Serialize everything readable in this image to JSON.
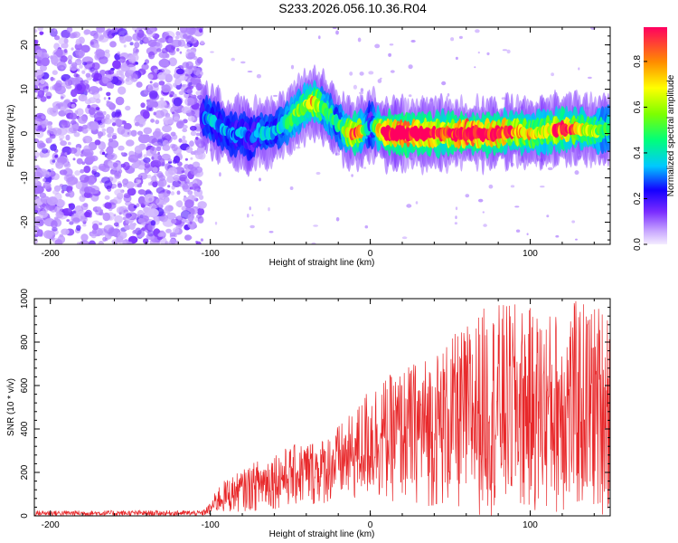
{
  "figure": {
    "title": "S233.2026.056.10.36.R04"
  },
  "chart_data": [
    {
      "type": "heatmap",
      "name": "spectrogram",
      "xlabel": "Height of straight line (km)",
      "ylabel": "Frequency (Hz)",
      "xlim": [
        -210,
        150
      ],
      "ylim": [
        -25,
        24
      ],
      "x_ticks": [
        -200,
        -100,
        0,
        100
      ],
      "x_tick_labels": [
        "-200",
        "-100",
        "0",
        "100"
      ],
      "y_ticks": [
        -20,
        -10,
        0,
        10,
        20
      ],
      "y_tick_labels": [
        "-20",
        "-10",
        "0",
        "10",
        "20"
      ],
      "noise_region": {
        "x_from": -210,
        "x_to": -105,
        "amplitude": 0.1
      },
      "ridge": {
        "x": [
          -105,
          -100,
          -95,
          -90,
          -85,
          -80,
          -75,
          -70,
          -65,
          -60,
          -55,
          -50,
          -45,
          -40,
          -35,
          -30,
          -25,
          -20,
          -15,
          -10,
          -5,
          0,
          5,
          10,
          20,
          30,
          40,
          50,
          60,
          70,
          80,
          90,
          100,
          110,
          120,
          130,
          140,
          150
        ],
        "freq": [
          4,
          3,
          2,
          0.5,
          -0.5,
          0.5,
          -1.5,
          0.5,
          0,
          0.5,
          2,
          3,
          5,
          6.5,
          7,
          6,
          4,
          2,
          0.5,
          0,
          0.5,
          2,
          1,
          0,
          0,
          0,
          0,
          0,
          0,
          0,
          0,
          0.5,
          0,
          0.5,
          1,
          1,
          0.5,
          1
        ],
        "amplitude": [
          0.2,
          0.35,
          0.25,
          0.3,
          0.25,
          0.3,
          0.2,
          0.3,
          0.35,
          0.3,
          0.35,
          0.45,
          0.5,
          0.55,
          0.7,
          0.5,
          0.45,
          0.35,
          0.6,
          0.8,
          0.6,
          0.2,
          0.6,
          0.9,
          0.95,
          0.95,
          0.8,
          0.8,
          0.95,
          0.9,
          0.9,
          0.7,
          0.65,
          0.6,
          0.85,
          0.65,
          0.55,
          0.4
        ]
      }
    },
    {
      "type": "colorbar",
      "name": "colorbar",
      "label": "Normalized spectral amplitude",
      "range": [
        0,
        0.95
      ],
      "ticks": [
        0.0,
        0.2,
        0.4,
        0.6,
        0.8
      ],
      "tick_labels": [
        "0.0",
        "0.2",
        "0.4",
        "0.6",
        "0.8"
      ]
    },
    {
      "type": "line",
      "name": "snr",
      "xlabel": "Height of straight line (km)",
      "ylabel": "SNR (10 * v/v)",
      "xlim": [
        -210,
        150
      ],
      "ylim": [
        0,
        1000
      ],
      "x_ticks": [
        -200,
        -100,
        0,
        100
      ],
      "x_tick_labels": [
        "-200",
        "-100",
        "0",
        "100"
      ],
      "y_ticks": [
        0,
        200,
        400,
        600,
        800,
        1000
      ],
      "y_tick_labels": [
        "0",
        "200",
        "400",
        "600",
        "800",
        "1000"
      ],
      "color": "#e8282a",
      "envelope": {
        "x": [
          -210,
          -105,
          -100,
          -95,
          -90,
          -80,
          -70,
          -60,
          -50,
          -40,
          -30,
          -20,
          -10,
          0,
          10,
          20,
          30,
          40,
          50,
          60,
          70,
          80,
          90,
          100,
          110,
          120,
          130,
          140,
          150
        ],
        "max": [
          25,
          25,
          60,
          140,
          170,
          210,
          260,
          300,
          320,
          350,
          360,
          420,
          480,
          620,
          640,
          680,
          720,
          760,
          820,
          880,
          960,
          980,
          980,
          960,
          940,
          960,
          1000,
          980,
          1000
        ],
        "min": [
          0,
          0,
          5,
          10,
          10,
          20,
          20,
          30,
          40,
          40,
          50,
          60,
          60,
          70,
          60,
          60,
          50,
          30,
          20,
          0,
          0,
          0,
          0,
          0,
          0,
          0,
          0,
          0,
          0
        ]
      }
    }
  ]
}
